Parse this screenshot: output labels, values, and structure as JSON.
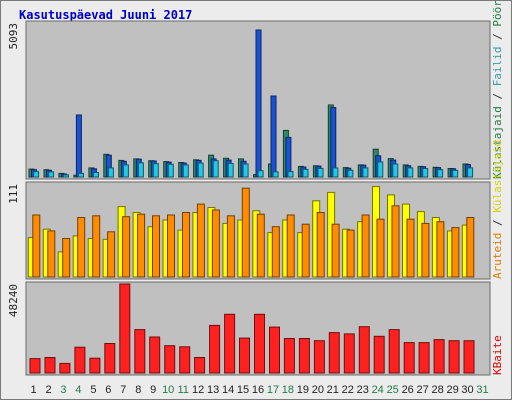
{
  "title": "Kasutuspäevad Juuni 2017",
  "chart_data": [
    {
      "type": "bar",
      "axis_max_label": "5093",
      "side_legend": [
        {
          "text": "Külastajaid",
          "color": "#1f7a4a"
        },
        {
          "text": " / ",
          "color": "#333333"
        },
        {
          "text": "Failid",
          "color": "#3a9aa0"
        },
        {
          "text": " / ",
          "color": "#333333"
        },
        {
          "text": "Pöördumisi",
          "color": "#1f7a4a"
        }
      ],
      "categories": [
        "1",
        "2",
        "3",
        "4",
        "5",
        "6",
        "7",
        "8",
        "9",
        "10",
        "11",
        "12",
        "13",
        "14",
        "15",
        "16",
        "17",
        "18",
        "19",
        "20",
        "21",
        "22",
        "23",
        "24",
        "25",
        "26",
        "27",
        "28",
        "29",
        "30",
        "31"
      ],
      "weekend_days": [
        "3",
        "4",
        "10",
        "11",
        "17",
        "18",
        "24",
        "25",
        "31"
      ],
      "ylim": [
        0,
        5093
      ],
      "series": [
        {
          "name": "Külastajaid",
          "color": "#2e8a66",
          "values": [
            260,
            240,
            120,
            60,
            300,
            750,
            550,
            600,
            540,
            510,
            480,
            570,
            720,
            620,
            600,
            80,
            430,
            1540,
            350,
            370,
            2380,
            310,
            400,
            920,
            610,
            400,
            350,
            320,
            280,
            430,
            0
          ]
        },
        {
          "name": "Pöördumisi",
          "color": "#1a52d6",
          "values": [
            240,
            220,
            100,
            2050,
            270,
            720,
            520,
            590,
            530,
            490,
            460,
            550,
            600,
            560,
            520,
            4860,
            2680,
            1310,
            330,
            360,
            2300,
            290,
            390,
            700,
            560,
            370,
            340,
            310,
            270,
            410,
            0
          ]
        },
        {
          "name": "Failid",
          "color": "#22c8e6",
          "values": [
            180,
            170,
            70,
            120,
            150,
            300,
            400,
            470,
            440,
            420,
            400,
            460,
            540,
            450,
            430,
            210,
            170,
            180,
            250,
            280,
            300,
            220,
            300,
            500,
            430,
            300,
            280,
            240,
            220,
            300,
            0
          ]
        }
      ]
    },
    {
      "type": "bar",
      "axis_max_label": "111",
      "side_legend": [
        {
          "text": "Aruteid",
          "color": "#e07a00"
        },
        {
          "text": " / ",
          "color": "#333333"
        },
        {
          "text": "Külastajaid",
          "color": "#d4d400"
        }
      ],
      "categories": [
        "1",
        "2",
        "3",
        "4",
        "5",
        "6",
        "7",
        "8",
        "9",
        "10",
        "11",
        "12",
        "13",
        "14",
        "15",
        "16",
        "17",
        "18",
        "19",
        "20",
        "21",
        "22",
        "23",
        "24",
        "25",
        "26",
        "27",
        "28",
        "29",
        "30",
        "31"
      ],
      "ylim": [
        0,
        111
      ],
      "series": [
        {
          "name": "Külastajaid",
          "color": "#ffff00",
          "values": [
            47,
            57,
            30,
            49,
            46,
            45,
            84,
            77,
            60,
            68,
            56,
            77,
            83,
            64,
            68,
            79,
            53,
            68,
            53,
            91,
            101,
            57,
            66,
            108,
            98,
            87,
            78,
            71,
            55,
            62,
            0
          ]
        },
        {
          "name": "Aruteid",
          "color": "#ff8c00",
          "values": [
            74,
            55,
            46,
            71,
            73,
            54,
            72,
            75,
            73,
            74,
            77,
            87,
            80,
            73,
            106,
            75,
            60,
            74,
            63,
            77,
            63,
            56,
            74,
            69,
            85,
            69,
            64,
            66,
            59,
            71,
            0
          ]
        }
      ]
    },
    {
      "type": "bar",
      "axis_max_label": "48240",
      "side_legend": [
        {
          "text": "KBaite",
          "color": "#e00000"
        }
      ],
      "categories": [
        "1",
        "2",
        "3",
        "4",
        "5",
        "6",
        "7",
        "8",
        "9",
        "10",
        "11",
        "12",
        "13",
        "14",
        "15",
        "16",
        "17",
        "18",
        "19",
        "20",
        "21",
        "22",
        "23",
        "24",
        "25",
        "26",
        "27",
        "28",
        "29",
        "30",
        "31"
      ],
      "ylim": [
        0,
        48240
      ],
      "series": [
        {
          "name": "KBaite",
          "color": "#ff2020",
          "values": [
            7800,
            8400,
            5200,
            14000,
            8000,
            16000,
            48240,
            23500,
            19500,
            14800,
            14200,
            8400,
            25800,
            31800,
            18900,
            31800,
            24900,
            18700,
            18700,
            17500,
            21900,
            21200,
            25100,
            19900,
            23500,
            16500,
            16500,
            18100,
            17500,
            17500,
            0
          ]
        }
      ]
    }
  ]
}
